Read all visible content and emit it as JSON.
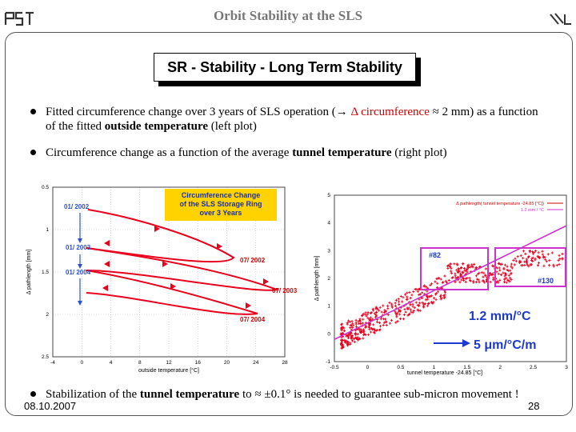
{
  "header": {
    "title": "Orbit Stability at the SLS",
    "logo_left": "PSI",
    "logo_right": "SLS"
  },
  "slide": {
    "title": "SR - Stability - Long Term Stability",
    "bullet1": {
      "part1": "Fitted circumference change over 3 years of SLS operation (→ ",
      "red1": "Δ circumference",
      "part2": " ≈ 2 mm) as a function of the fitted ",
      "bold": "outside temperature",
      "part3": " (left plot)"
    },
    "bullet2": {
      "part1": "Circumference change as a function of the average ",
      "bold": "tunnel temperature",
      "part2": " (right plot)"
    },
    "bullet3": {
      "part1": "Stabilization of the ",
      "bold": "tunnel temperature",
      "part2": " to ≈ ±0.1° is needed to guarantee sub-micron movement !"
    }
  },
  "footer": {
    "date": "08.10.2007",
    "page": "28"
  },
  "chart_data": [
    {
      "type": "line",
      "title": "Circumference Change of the SLS Storage Ring over 3 Years",
      "title_lines": [
        "Circumference Change",
        "of the SLS Storage Ring",
        "over 3 Years"
      ],
      "xlabel": "outside temperature [°C]",
      "ylabel": "Δ pathlength [mm]",
      "xlim": [
        -4,
        28
      ],
      "ylim": [
        0.5,
        2.5
      ],
      "y_inverted": true,
      "xticks": [
        "-4",
        "0",
        "4",
        "8",
        "12",
        "16",
        "20",
        "24",
        "28"
      ],
      "yticks": [
        "0.5",
        "1",
        "1.5",
        "2",
        "2.5"
      ],
      "annotations": [
        "01/ 2002",
        "01/ 2003",
        "01/ 2004",
        "07/ 2002",
        "07/ 2003",
        "07/ 2004"
      ],
      "colors": {
        "data": "#e8001c",
        "title_box": "#ffd200",
        "blue": "#2b4fd6"
      }
    },
    {
      "type": "scatter",
      "legend": [
        "Δ pathlength( tunnel temperature -24.85 [°C])",
        "1.2 mm / °C"
      ],
      "xlabel": "tunnel temperature -24.85 [°C]",
      "ylabel": "Δ pathlength [mm]",
      "xlim": [
        -0.5,
        3
      ],
      "ylim": [
        -1,
        5
      ],
      "xticks": [
        "-0.5",
        "0",
        "0.5",
        "1",
        "1.5",
        "2",
        "2.5",
        "3"
      ],
      "yticks": [
        "5",
        "4",
        "3",
        "2",
        "1",
        "0",
        "-1"
      ],
      "labels": [
        "#82",
        "#130"
      ],
      "slope_text": "1.2 mm/°C",
      "resolution_text": "5 μm/°C/m",
      "fit_line": {
        "x": [
          -0.5,
          3
        ],
        "y": [
          -0.2,
          3.9
        ]
      },
      "colors": {
        "data": "#e8001c",
        "fit": "#cc33cc",
        "highlight": "#cc33cc",
        "annotation": "#1d3ad0"
      }
    }
  ]
}
